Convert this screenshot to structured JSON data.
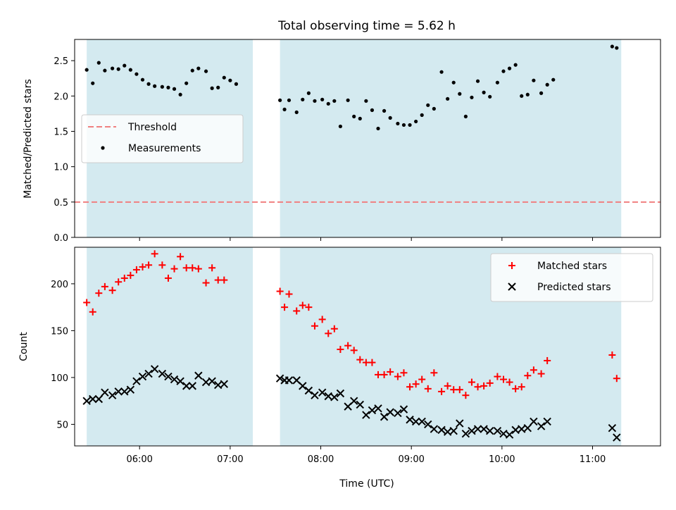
{
  "chart_data": {
    "type": "scatter",
    "title": "Total observing time = 5.62 h",
    "xlabel": "Time (UTC)",
    "xlim": [
      "05:17",
      "11:45"
    ],
    "x_ticks": [
      "06:00",
      "07:00",
      "08:00",
      "09:00",
      "10:00",
      "11:00"
    ],
    "observing_windows": [
      [
        "05:25",
        "07:15"
      ],
      [
        "07:33",
        "11:19"
      ]
    ],
    "window_color": "#d4eaf0",
    "panels": [
      {
        "ylabel": "Matched/Predicted stars",
        "ylim": [
          0,
          2.8
        ],
        "y_ticks": [
          "0.0",
          "0.5",
          "1.0",
          "1.5",
          "2.0",
          "2.5"
        ],
        "legend_position": "center-left",
        "threshold": {
          "name": "Threshold",
          "value": 0.5,
          "color": "#f08080"
        },
        "series": [
          {
            "name": "Measurements",
            "marker": "dot",
            "color": "#000000",
            "points": [
              [
                "05:25",
                2.37
              ],
              [
                "05:29",
                2.18
              ],
              [
                "05:33",
                2.47
              ],
              [
                "05:37",
                2.36
              ],
              [
                "05:42",
                2.39
              ],
              [
                "05:46",
                2.38
              ],
              [
                "05:50",
                2.43
              ],
              [
                "05:54",
                2.37
              ],
              [
                "05:58",
                2.31
              ],
              [
                "06:02",
                2.23
              ],
              [
                "06:06",
                2.17
              ],
              [
                "06:10",
                2.14
              ],
              [
                "06:15",
                2.13
              ],
              [
                "06:19",
                2.12
              ],
              [
                "06:23",
                2.1
              ],
              [
                "06:27",
                2.02
              ],
              [
                "06:31",
                2.18
              ],
              [
                "06:35",
                2.36
              ],
              [
                "06:39",
                2.39
              ],
              [
                "06:44",
                2.35
              ],
              [
                "06:48",
                2.11
              ],
              [
                "06:52",
                2.12
              ],
              [
                "06:56",
                2.26
              ],
              [
                "07:00",
                2.22
              ],
              [
                "07:04",
                2.17
              ],
              [
                "07:33",
                1.94
              ],
              [
                "07:36",
                1.81
              ],
              [
                "07:39",
                1.94
              ],
              [
                "07:44",
                1.77
              ],
              [
                "07:48",
                1.95
              ],
              [
                "07:52",
                2.04
              ],
              [
                "07:56",
                1.93
              ],
              [
                "08:01",
                1.95
              ],
              [
                "08:05",
                1.89
              ],
              [
                "08:09",
                1.93
              ],
              [
                "08:13",
                1.57
              ],
              [
                "08:18",
                1.94
              ],
              [
                "08:22",
                1.71
              ],
              [
                "08:26",
                1.68
              ],
              [
                "08:30",
                1.93
              ],
              [
                "08:34",
                1.8
              ],
              [
                "08:38",
                1.54
              ],
              [
                "08:42",
                1.79
              ],
              [
                "08:46",
                1.69
              ],
              [
                "08:51",
                1.61
              ],
              [
                "08:55",
                1.59
              ],
              [
                "08:59",
                1.59
              ],
              [
                "09:03",
                1.64
              ],
              [
                "09:07",
                1.73
              ],
              [
                "09:11",
                1.87
              ],
              [
                "09:15",
                1.82
              ],
              [
                "09:20",
                2.34
              ],
              [
                "09:24",
                1.96
              ],
              [
                "09:28",
                2.19
              ],
              [
                "09:32",
                2.03
              ],
              [
                "09:36",
                1.71
              ],
              [
                "09:40",
                1.98
              ],
              [
                "09:44",
                2.21
              ],
              [
                "09:48",
                2.05
              ],
              [
                "09:52",
                1.99
              ],
              [
                "09:57",
                2.19
              ],
              [
                "10:01",
                2.35
              ],
              [
                "10:05",
                2.39
              ],
              [
                "10:09",
                2.44
              ],
              [
                "10:13",
                2.0
              ],
              [
                "10:17",
                2.02
              ],
              [
                "10:21",
                2.22
              ],
              [
                "10:26",
                2.04
              ],
              [
                "10:30",
                2.16
              ],
              [
                "10:34",
                2.23
              ],
              [
                "11:13",
                2.7
              ],
              [
                "11:16",
                2.68
              ]
            ]
          }
        ]
      },
      {
        "ylabel": "Count",
        "ylim": [
          27,
          239
        ],
        "y_ticks": [
          "50",
          "100",
          "150",
          "200"
        ],
        "legend_position": "upper-right",
        "series": [
          {
            "name": "Matched stars",
            "marker": "plus",
            "color": "#ff0000",
            "points": [
              [
                "05:25",
                180
              ],
              [
                "05:29",
                170
              ],
              [
                "05:33",
                190
              ],
              [
                "05:37",
                197
              ],
              [
                "05:42",
                193
              ],
              [
                "05:46",
                202
              ],
              [
                "05:50",
                206
              ],
              [
                "05:54",
                209
              ],
              [
                "05:58",
                215
              ],
              [
                "06:02",
                218
              ],
              [
                "06:06",
                220
              ],
              [
                "06:10",
                232
              ],
              [
                "06:15",
                220
              ],
              [
                "06:19",
                206
              ],
              [
                "06:23",
                216
              ],
              [
                "06:27",
                229
              ],
              [
                "06:31",
                217
              ],
              [
                "06:35",
                217
              ],
              [
                "06:39",
                216
              ],
              [
                "06:44",
                201
              ],
              [
                "06:48",
                217
              ],
              [
                "06:52",
                204
              ],
              [
                "06:56",
                204
              ],
              [
                "07:33",
                192
              ],
              [
                "07:36",
                175
              ],
              [
                "07:39",
                189
              ],
              [
                "07:44",
                171
              ],
              [
                "07:48",
                177
              ],
              [
                "07:52",
                175
              ],
              [
                "07:56",
                155
              ],
              [
                "08:01",
                162
              ],
              [
                "08:05",
                147
              ],
              [
                "08:09",
                152
              ],
              [
                "08:13",
                130
              ],
              [
                "08:18",
                134
              ],
              [
                "08:22",
                129
              ],
              [
                "08:26",
                119
              ],
              [
                "08:30",
                116
              ],
              [
                "08:34",
                116
              ],
              [
                "08:38",
                103
              ],
              [
                "08:42",
                103
              ],
              [
                "08:46",
                106
              ],
              [
                "08:51",
                101
              ],
              [
                "08:55",
                105
              ],
              [
                "08:59",
                90
              ],
              [
                "09:03",
                93
              ],
              [
                "09:07",
                98
              ],
              [
                "09:11",
                88
              ],
              [
                "09:15",
                105
              ],
              [
                "09:20",
                85
              ],
              [
                "09:24",
                91
              ],
              [
                "09:28",
                87
              ],
              [
                "09:32",
                87
              ],
              [
                "09:36",
                81
              ],
              [
                "09:40",
                95
              ],
              [
                "09:44",
                90
              ],
              [
                "09:48",
                91
              ],
              [
                "09:52",
                94
              ],
              [
                "09:57",
                101
              ],
              [
                "10:01",
                98
              ],
              [
                "10:05",
                95
              ],
              [
                "10:09",
                88
              ],
              [
                "10:13",
                90
              ],
              [
                "10:17",
                102
              ],
              [
                "10:21",
                108
              ],
              [
                "10:26",
                104
              ],
              [
                "10:30",
                118
              ],
              [
                "11:13",
                124
              ],
              [
                "11:16",
                99
              ]
            ]
          },
          {
            "name": "Predicted stars",
            "marker": "x",
            "color": "#000000",
            "points": [
              [
                "05:25",
                75
              ],
              [
                "05:29",
                77
              ],
              [
                "05:33",
                77
              ],
              [
                "05:37",
                84
              ],
              [
                "05:42",
                81
              ],
              [
                "05:46",
                85
              ],
              [
                "05:50",
                85
              ],
              [
                "05:54",
                87
              ],
              [
                "05:58",
                96
              ],
              [
                "06:02",
                101
              ],
              [
                "06:06",
                104
              ],
              [
                "06:10",
                109
              ],
              [
                "06:15",
                104
              ],
              [
                "06:19",
                101
              ],
              [
                "06:23",
                98
              ],
              [
                "06:27",
                96
              ],
              [
                "06:31",
                91
              ],
              [
                "06:35",
                91
              ],
              [
                "06:39",
                102
              ],
              [
                "06:44",
                95
              ],
              [
                "06:48",
                96
              ],
              [
                "06:52",
                92
              ],
              [
                "06:56",
                93
              ],
              [
                "07:33",
                99
              ],
              [
                "07:36",
                97
              ],
              [
                "07:39",
                97
              ],
              [
                "07:44",
                97
              ],
              [
                "07:48",
                91
              ],
              [
                "07:52",
                86
              ],
              [
                "07:56",
                81
              ],
              [
                "08:01",
                84
              ],
              [
                "08:05",
                80
              ],
              [
                "08:09",
                79
              ],
              [
                "08:13",
                83
              ],
              [
                "08:18",
                69
              ],
              [
                "08:22",
                75
              ],
              [
                "08:26",
                71
              ],
              [
                "08:30",
                60
              ],
              [
                "08:34",
                65
              ],
              [
                "08:38",
                67
              ],
              [
                "08:42",
                58
              ],
              [
                "08:46",
                63
              ],
              [
                "08:51",
                62
              ],
              [
                "08:55",
                66
              ],
              [
                "08:59",
                55
              ],
              [
                "09:03",
                53
              ],
              [
                "09:07",
                53
              ],
              [
                "09:11",
                50
              ],
              [
                "09:15",
                45
              ],
              [
                "09:20",
                44
              ],
              [
                "09:24",
                42
              ],
              [
                "09:28",
                43
              ],
              [
                "09:32",
                51
              ],
              [
                "09:36",
                40
              ],
              [
                "09:40",
                43
              ],
              [
                "09:44",
                45
              ],
              [
                "09:48",
                45
              ],
              [
                "09:52",
                43
              ],
              [
                "09:57",
                43
              ],
              [
                "10:01",
                40
              ],
              [
                "10:05",
                39
              ],
              [
                "10:09",
                44
              ],
              [
                "10:13",
                45
              ],
              [
                "10:17",
                46
              ],
              [
                "10:21",
                53
              ],
              [
                "10:26",
                48
              ],
              [
                "10:30",
                53
              ],
              [
                "11:13",
                46
              ],
              [
                "11:16",
                36
              ]
            ]
          }
        ]
      }
    ]
  }
}
